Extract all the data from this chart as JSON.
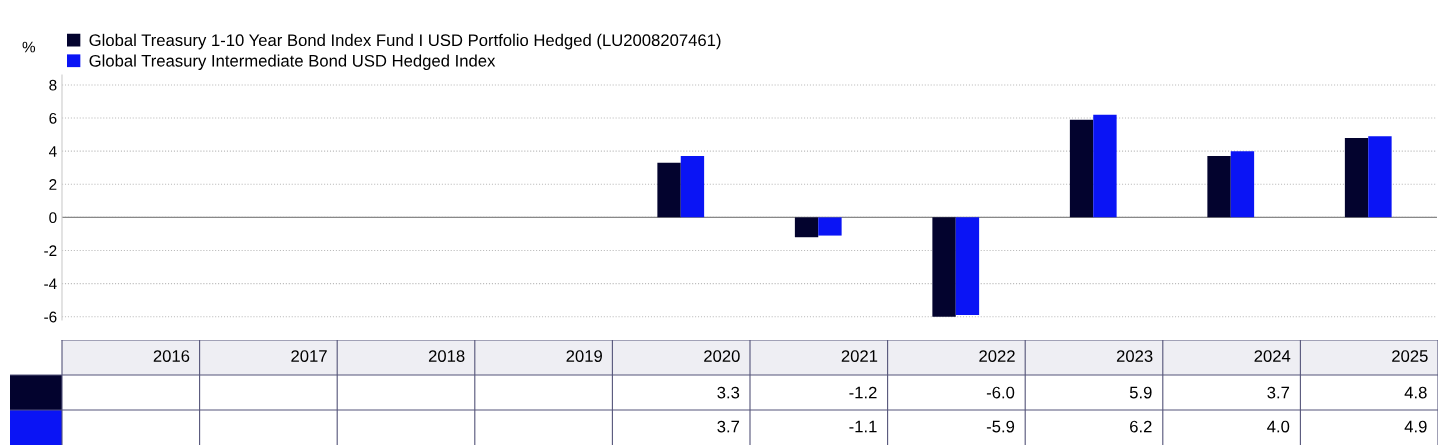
{
  "chart_data": {
    "type": "bar",
    "ylabel": "%",
    "categories": [
      "2016",
      "2017",
      "2018",
      "2019",
      "2020",
      "2021",
      "2022",
      "2023",
      "2024",
      "2025"
    ],
    "series": [
      {
        "name": "Global Treasury 1-10 Year Bond Index Fund I USD Portfolio Hedged (LU2008207461)",
        "color": "#03032e",
        "values": [
          null,
          null,
          null,
          null,
          3.3,
          -1.2,
          -6.0,
          5.9,
          3.7,
          4.8
        ],
        "value_labels": [
          null,
          null,
          null,
          null,
          "3.3",
          "-1.2",
          "-6.0",
          "5.9",
          "3.7",
          "4.8"
        ]
      },
      {
        "name": "Global Treasury Intermediate Bond USD Hedged Index",
        "color": "#0a14f5",
        "values": [
          null,
          null,
          null,
          null,
          3.7,
          -1.1,
          -5.9,
          6.2,
          4.0,
          4.9
        ],
        "value_labels": [
          null,
          null,
          null,
          null,
          "3.7",
          "-1.1",
          "-5.9",
          "6.2",
          "4.0",
          "4.9"
        ]
      }
    ],
    "ylim": [
      -6.2,
      8.6
    ],
    "yticks": [
      -6,
      -4,
      -2,
      0,
      2,
      4,
      6,
      8
    ],
    "grid": "y",
    "legend": "top left"
  }
}
